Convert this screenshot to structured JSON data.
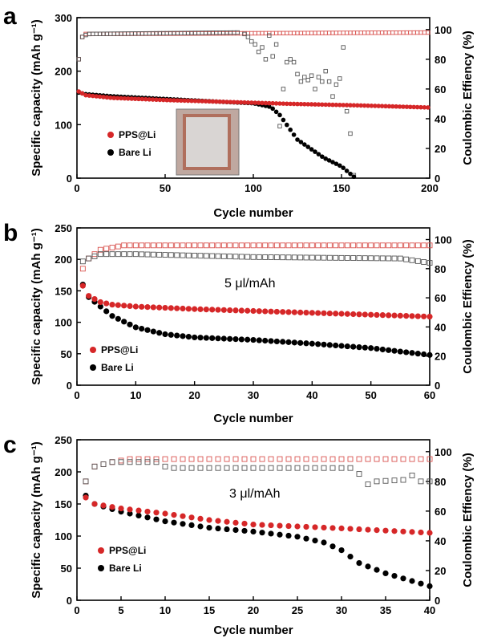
{
  "colors": {
    "pps": "#d62728",
    "bare": "#000000",
    "pps_ce": "#d9534f",
    "bare_ce": "#555555",
    "photo_bg": "#bfa8a0",
    "photo_frame": "#b06f5d",
    "photo_center": "#d9d5d3"
  },
  "chart_data": [
    {
      "panel": "a",
      "type": "scatter",
      "xlabel": "Cycle number",
      "ylabel": "Specific capacity (mAh g⁻¹)",
      "y2label": "Coulombic Effiency (%)",
      "xlim": [
        0,
        200
      ],
      "ylim": [
        0,
        300
      ],
      "y2lim": [
        0,
        108
      ],
      "xticks": [
        0,
        50,
        100,
        150,
        200
      ],
      "yticks": [
        0,
        100,
        200,
        300
      ],
      "y2ticks": [
        0,
        20,
        40,
        60,
        80,
        100
      ],
      "annotation": "",
      "inset": "photo of cell",
      "legend": {
        "position": "center-left",
        "entries": [
          "PPS@Li",
          "Bare Li"
        ]
      },
      "capacity_series": [
        {
          "name": "PPS@Li",
          "x_start": 1,
          "x_end": 200,
          "step": 2,
          "anchors_x": [
            1,
            5,
            20,
            50,
            80,
            120,
            160,
            200
          ],
          "anchors_y": [
            162,
            155,
            150,
            146,
            143,
            139,
            136,
            132
          ]
        },
        {
          "name": "Bare Li",
          "x_start": 1,
          "x_end": 158,
          "step": 2,
          "anchors_x": [
            1,
            5,
            20,
            50,
            80,
            100,
            110,
            115,
            125,
            140,
            150,
            155,
            158
          ],
          "anchors_y": [
            160,
            157,
            153,
            148,
            143,
            140,
            133,
            118,
            72,
            38,
            22,
            8,
            0
          ]
        }
      ],
      "ce_series": [
        {
          "name": "PPS@Li",
          "x_start": 1,
          "x_end": 200,
          "step": 2,
          "anchors_x": [
            1,
            2,
            4,
            200
          ],
          "anchors_y": [
            80,
            93,
            97,
            98
          ]
        },
        {
          "name": "Bare Li",
          "x_start": 1,
          "x_end": 92,
          "step": 2,
          "anchors_x": [
            1,
            3,
            6,
            92
          ],
          "anchors_y": [
            80,
            95,
            97,
            98
          ],
          "extra_x": [
            95,
            97,
            99,
            101,
            103,
            105,
            107,
            109,
            111,
            113,
            115,
            117,
            119,
            121,
            123,
            125,
            127,
            129,
            131,
            133,
            135,
            137,
            139,
            141,
            143,
            145,
            147,
            149,
            151,
            153,
            155,
            157
          ],
          "extra_y": [
            97,
            95,
            92,
            90,
            85,
            88,
            80,
            96,
            82,
            90,
            35,
            60,
            78,
            80,
            78,
            70,
            65,
            68,
            66,
            69,
            60,
            68,
            65,
            72,
            65,
            55,
            63,
            67,
            88,
            45,
            30,
            2
          ]
        }
      ]
    },
    {
      "panel": "b",
      "type": "scatter",
      "xlabel": "Cycle number",
      "ylabel": "Specific capacity (mAh g⁻¹)",
      "y2label": "Coulombic Effiency (%)",
      "xlim": [
        0,
        60
      ],
      "ylim": [
        0,
        250
      ],
      "y2lim": [
        0,
        108
      ],
      "xticks": [
        0,
        10,
        20,
        30,
        40,
        50,
        60
      ],
      "yticks": [
        0,
        50,
        100,
        150,
        200,
        250
      ],
      "y2ticks": [
        0,
        20,
        40,
        60,
        80,
        100
      ],
      "annotation": "5 μl/mAh",
      "legend": {
        "position": "bottom-left",
        "entries": [
          "PPS@Li",
          "Bare Li"
        ]
      },
      "capacity_series": [
        {
          "name": "PPS@Li",
          "x_start": 1,
          "x_end": 60,
          "step": 1,
          "anchors_x": [
            1,
            2,
            4,
            6,
            10,
            20,
            40,
            60
          ],
          "anchors_y": [
            158,
            142,
            132,
            128,
            125,
            121,
            115,
            109
          ]
        },
        {
          "name": "Bare Li",
          "x_start": 1,
          "x_end": 60,
          "step": 1,
          "anchors_x": [
            1,
            2,
            4,
            6,
            10,
            15,
            20,
            30,
            40,
            50,
            60
          ],
          "anchors_y": [
            160,
            140,
            125,
            110,
            92,
            81,
            76,
            72,
            66,
            59,
            48
          ]
        }
      ],
      "ce_series": [
        {
          "name": "PPS@Li",
          "x_start": 1,
          "x_end": 60,
          "step": 1,
          "anchors_x": [
            1,
            2,
            4,
            8,
            10,
            60
          ],
          "anchors_y": [
            80,
            87,
            93,
            96,
            96,
            96
          ]
        },
        {
          "name": "Bare Li",
          "x_start": 1,
          "x_end": 60,
          "step": 1,
          "anchors_x": [
            1,
            2,
            4,
            10,
            30,
            55,
            60
          ],
          "anchors_y": [
            85,
            87,
            90,
            90,
            88,
            87,
            84
          ]
        }
      ]
    },
    {
      "panel": "c",
      "type": "scatter",
      "xlabel": "Cycle number",
      "ylabel": "Specific capacity (mAh g⁻¹)",
      "y2label": "Coulombic Effiency (%)",
      "xlim": [
        0,
        40
      ],
      "ylim": [
        0,
        250
      ],
      "y2lim": [
        0,
        108
      ],
      "xticks": [
        0,
        5,
        10,
        15,
        20,
        25,
        30,
        35,
        40
      ],
      "yticks": [
        0,
        50,
        100,
        150,
        200,
        250
      ],
      "y2ticks": [
        0,
        20,
        40,
        60,
        80,
        100
      ],
      "annotation": "3 μl/mAh",
      "legend": {
        "position": "bottom-left",
        "entries": [
          "PPS@Li",
          "Bare Li"
        ]
      },
      "capacity_series": [
        {
          "name": "PPS@Li",
          "x_start": 1,
          "x_end": 40,
          "step": 1,
          "anchors_x": [
            1,
            2,
            5,
            10,
            15,
            20,
            30,
            40
          ],
          "anchors_y": [
            160,
            150,
            143,
            135,
            125,
            118,
            112,
            105
          ]
        },
        {
          "name": "Bare Li",
          "x_start": 1,
          "x_end": 40,
          "step": 1,
          "anchors_x": [
            1,
            2,
            5,
            10,
            15,
            20,
            25,
            28,
            30,
            32,
            35,
            38,
            40
          ],
          "anchors_y": [
            163,
            150,
            138,
            123,
            113,
            107,
            99,
            90,
            78,
            58,
            42,
            30,
            22
          ]
        }
      ],
      "ce_series": [
        {
          "name": "PPS@Li",
          "x_start": 1,
          "x_end": 40,
          "step": 1,
          "anchors_x": [
            1,
            2,
            4,
            6,
            10,
            40
          ],
          "anchors_y": [
            80,
            90,
            93,
            95,
            95,
            95
          ]
        },
        {
          "name": "Bare Li",
          "x_start": 1,
          "x_end": 40,
          "step": 1,
          "anchors_x": [
            1,
            2,
            4,
            9,
            10,
            11,
            31,
            32,
            33,
            34,
            37,
            38,
            39,
            40
          ],
          "anchors_y": [
            80,
            90,
            93,
            93,
            90,
            89,
            89,
            85,
            78,
            80,
            81,
            84,
            80,
            80
          ]
        }
      ]
    }
  ]
}
